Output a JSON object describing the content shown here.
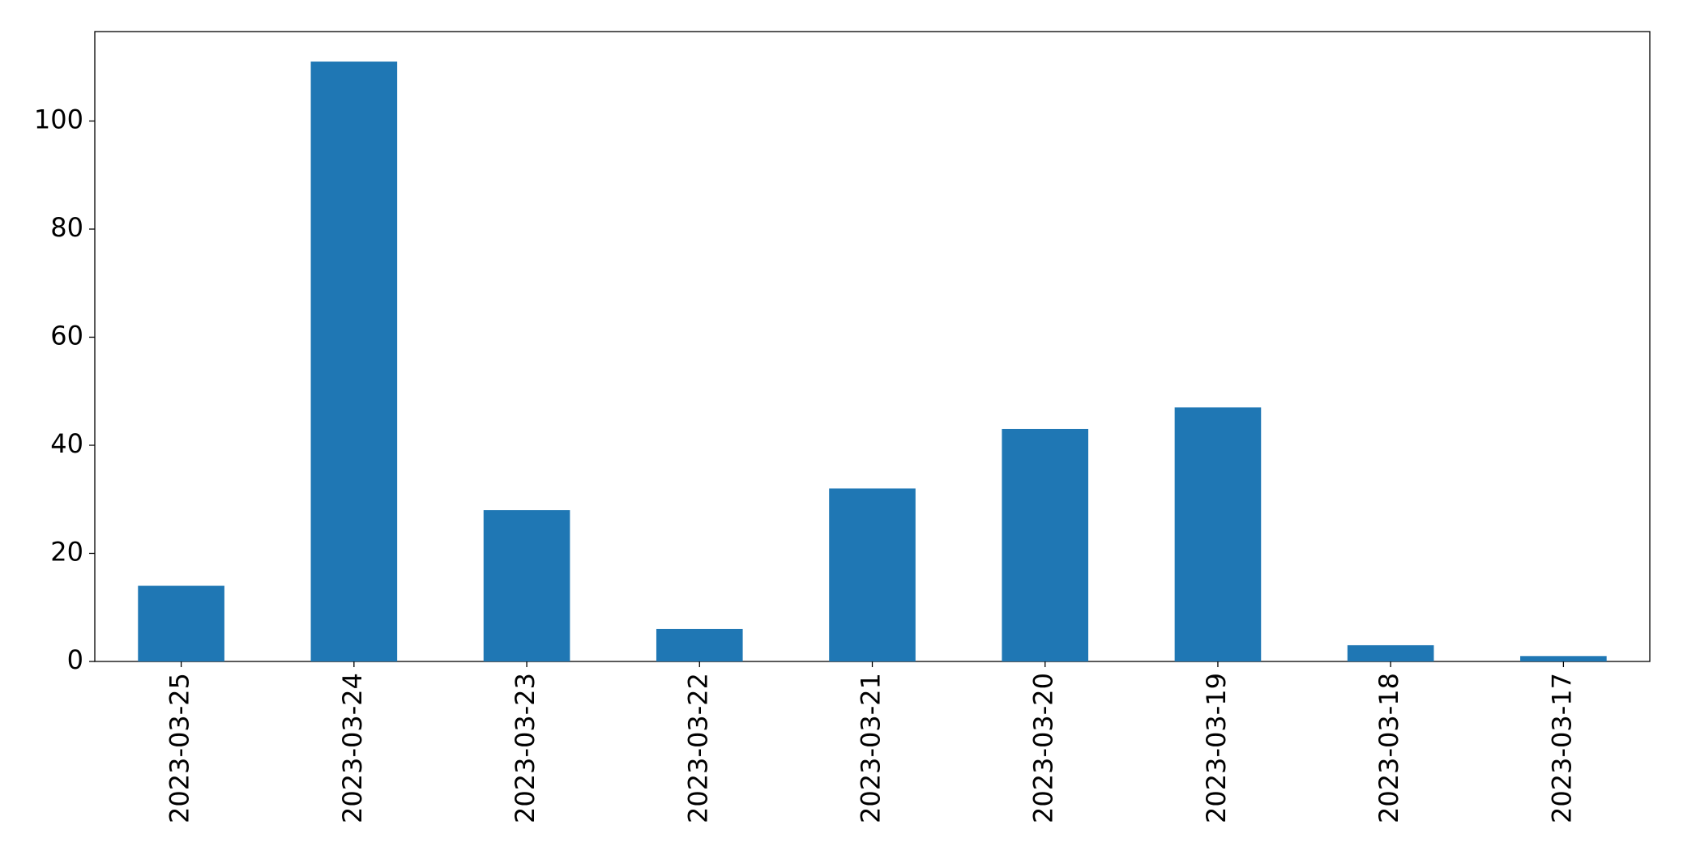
{
  "chart_data": {
    "type": "bar",
    "categories": [
      "2023-03-25",
      "2023-03-24",
      "2023-03-23",
      "2023-03-22",
      "2023-03-21",
      "2023-03-20",
      "2023-03-19",
      "2023-03-18",
      "2023-03-17"
    ],
    "values": [
      14,
      111,
      28,
      6,
      32,
      43,
      47,
      3,
      1
    ],
    "color": "#1f77b4",
    "ylim": [
      0,
      116.55
    ],
    "yticks": [
      0,
      20,
      40,
      60,
      80,
      100
    ],
    "grid": false
  }
}
